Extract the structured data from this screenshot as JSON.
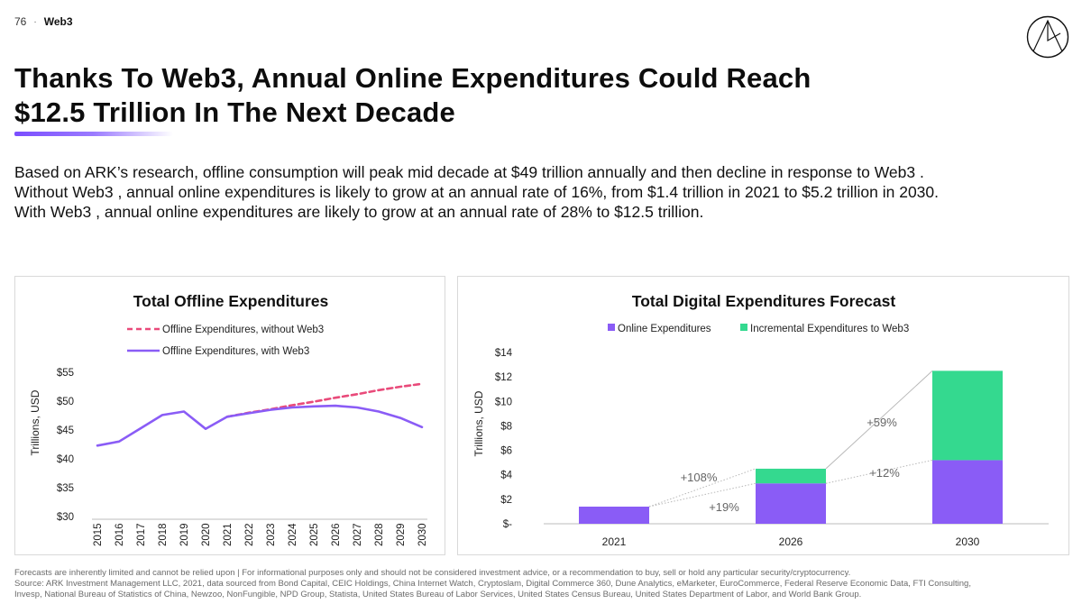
{
  "header": {
    "page_number": "76",
    "separator": "·",
    "section": "Web3"
  },
  "title": {
    "line1": "Thanks To Web3, Annual Online Expenditures Could Reach",
    "line2": "$12.5 Trillion In The Next Decade"
  },
  "intro": {
    "line1": "Based on ARK’s research, offline consumption will peak mid decade at $49 trillion annually and then decline in response to Web3 .",
    "line2": "Without Web3 , annual online expenditures is likely to grow at an annual rate of 16%, from $1.4 trillion in 2021 to $5.2 trillion in 2030.",
    "line3": "With Web3 , annual online expenditures are likely to grow at an annual rate of 28% to $12.5 trillion."
  },
  "colors": {
    "purple": "#8a5cf6",
    "pink": "#e94a7a",
    "green": "#34d98f",
    "accent": "#7a4dff"
  },
  "chart_data": [
    {
      "type": "line",
      "title": "Total Offline Expenditures",
      "ylabel": "Trillions, USD",
      "xlabel": "",
      "x": [
        "2015",
        "2016",
        "2017",
        "2018",
        "2019",
        "2020",
        "2021",
        "2022",
        "2023",
        "2024",
        "2025",
        "2026",
        "2027",
        "2028",
        "2029",
        "2030"
      ],
      "ylim": [
        30,
        55
      ],
      "y_ticks": [
        "$30",
        "$35",
        "$40",
        "$45",
        "$50",
        "$55"
      ],
      "legend_position": "top",
      "series": [
        {
          "name": "Offline Expenditures, without Web3",
          "color": "#e94a7a",
          "style": "dashed",
          "values": [
            null,
            null,
            null,
            null,
            null,
            null,
            47.3,
            48.0,
            48.6,
            49.3,
            49.9,
            50.6,
            51.2,
            51.9,
            52.5,
            53.0
          ]
        },
        {
          "name": "Offline Expenditures, with Web3",
          "color": "#8a5cf6",
          "style": "solid",
          "values": [
            42.3,
            43.0,
            45.3,
            47.6,
            48.2,
            45.2,
            47.3,
            47.9,
            48.5,
            48.9,
            49.1,
            49.2,
            48.9,
            48.2,
            47.1,
            45.5
          ]
        }
      ]
    },
    {
      "type": "bar",
      "stacked": true,
      "title": "Total Digital Expenditures Forecast",
      "ylabel": "Trillions, USD",
      "categories": [
        "2021",
        "2026",
        "2030"
      ],
      "ylim": [
        0,
        14
      ],
      "y_ticks": [
        "$-",
        "$2",
        "$4",
        "$6",
        "$8",
        "$10",
        "$12",
        "$14"
      ],
      "legend_position": "top",
      "series": [
        {
          "name": "Online Expenditures",
          "color": "#8a5cf6",
          "values": [
            1.4,
            3.3,
            5.2
          ]
        },
        {
          "name": "Incremental Expenditures to Web3",
          "color": "#34d98f",
          "values": [
            0,
            1.2,
            7.3
          ]
        }
      ],
      "annotations": [
        "+108%",
        "+19%",
        "+59%",
        "+12%"
      ]
    }
  ],
  "footer": {
    "line1": "Forecasts are inherently limited and cannot be relied upon | For informational purposes only and should not be considered investment advice, or a recommendation to buy, sell or hold any particular security/cryptocurrency.",
    "line2": "Source: ARK Investment Management LLC,  2021, data sourced from Bond Capital, CEIC Holdings, China Internet Watch, Cryptoslam, Digital Commerce 360, Dune Analytics, eMarketer, EuroCommerce, Federal Reserve Economic Data, FTI Consulting,",
    "line3": "Invesp, National Bureau of Statistics of China, Newzoo, NonFungible, NPD Group, Statista, United States Bureau of Labor Services, United States Census Bureau, United States Department of Labor, and World Bank Group."
  }
}
